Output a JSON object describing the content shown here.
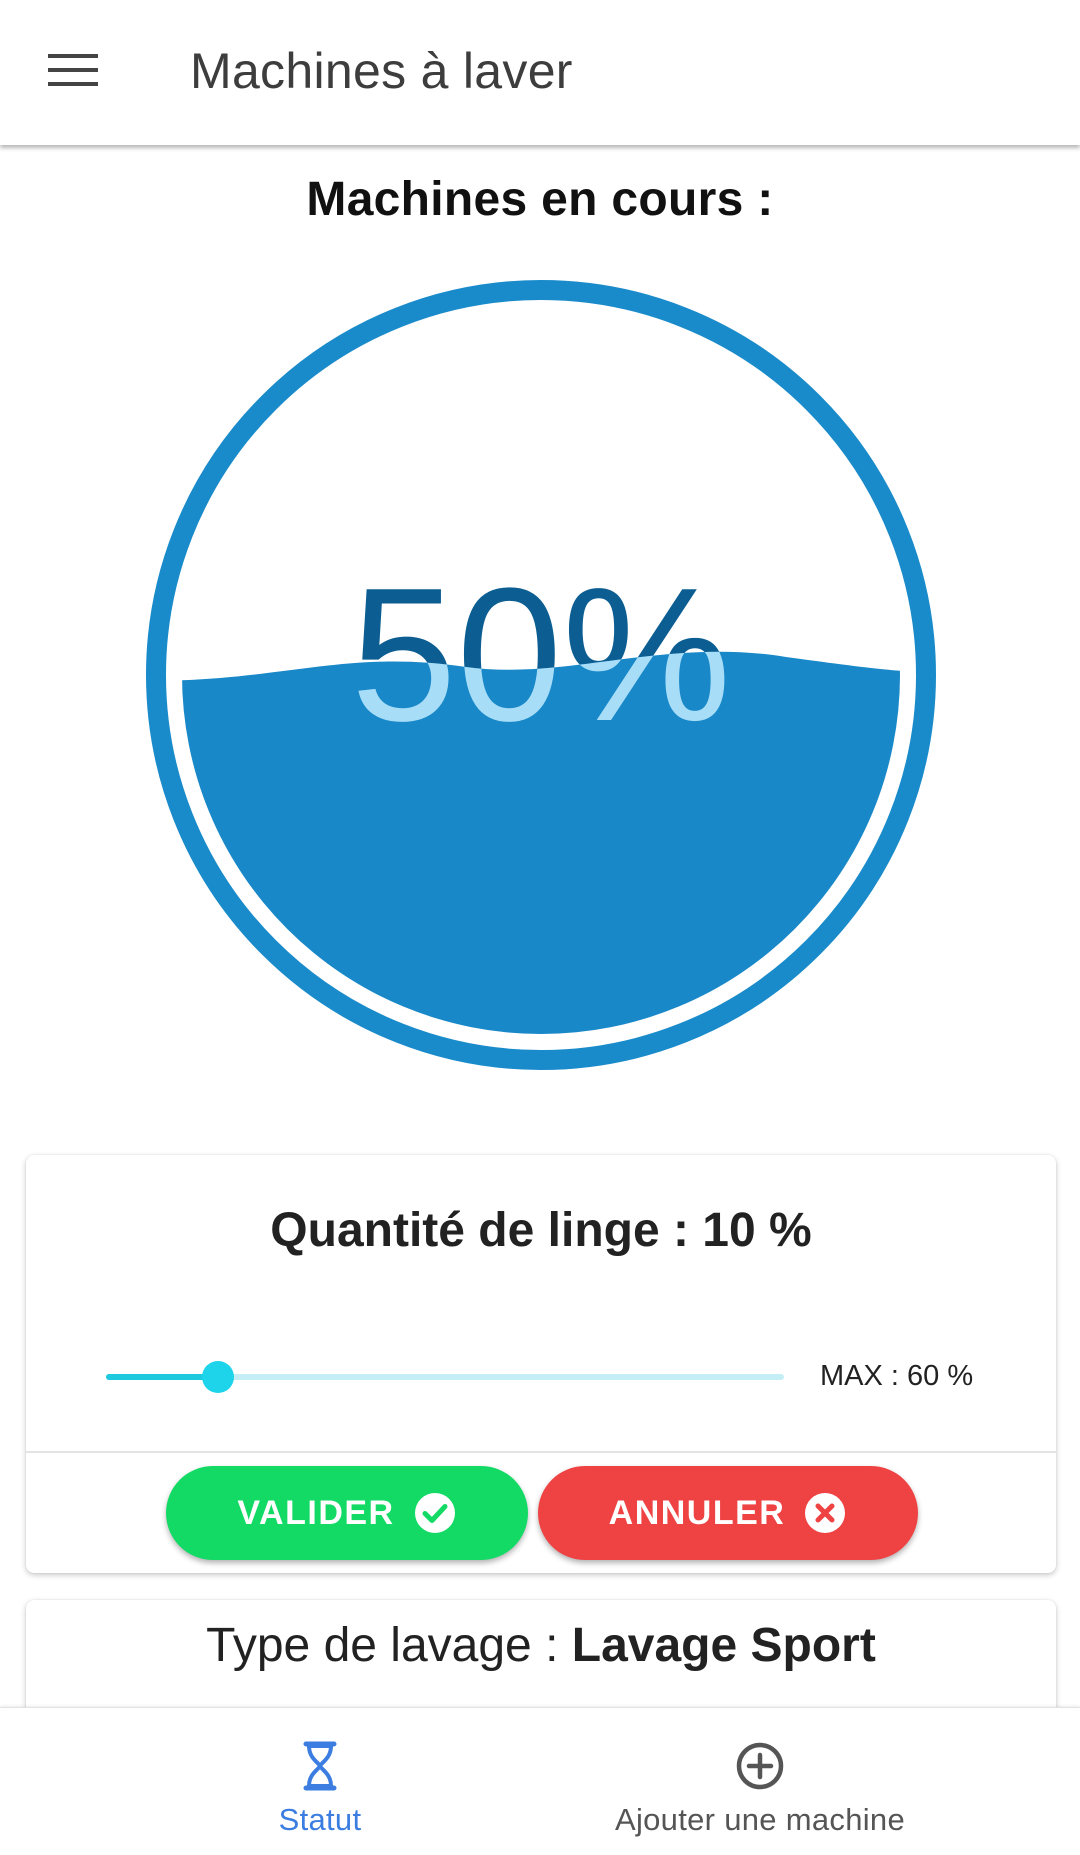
{
  "appbar": {
    "title": "Machines à laver",
    "menu_icon": "menu-icon"
  },
  "main": {
    "section_title": "Machines en cours :",
    "gauge": {
      "percent_label": "50%",
      "fill_fraction": 0.5,
      "colors": {
        "ring": "#1a8bca",
        "water": "#1888c8",
        "text_above": "#0c5e92",
        "text_below": "#a8ddf8"
      }
    }
  },
  "quantity_card": {
    "title": "Quantité de linge : 10 %",
    "slider": {
      "value_percent": 10,
      "max_percent": 60,
      "max_label": "MAX : 60 %",
      "colors": {
        "track": "#c3eef6",
        "fill": "#1ec9e0",
        "thumb": "#1ed4ea"
      }
    },
    "buttons": {
      "valider": {
        "label": "VALIDER",
        "icon": "check-circle-icon",
        "color": "#13d965"
      },
      "annuler": {
        "label": "ANNULER",
        "icon": "close-circle-icon",
        "color": "#ee4243"
      }
    }
  },
  "type_card": {
    "label": "Type de lavage : ",
    "value": "Lavage Sport"
  },
  "bottom_nav": {
    "items": [
      {
        "label": "Statut",
        "icon": "hourglass-icon",
        "active": true,
        "color": "#3b7de0"
      },
      {
        "label": "Ajouter une machine",
        "icon": "add-circle-icon",
        "active": false,
        "color": "#555555"
      }
    ]
  }
}
